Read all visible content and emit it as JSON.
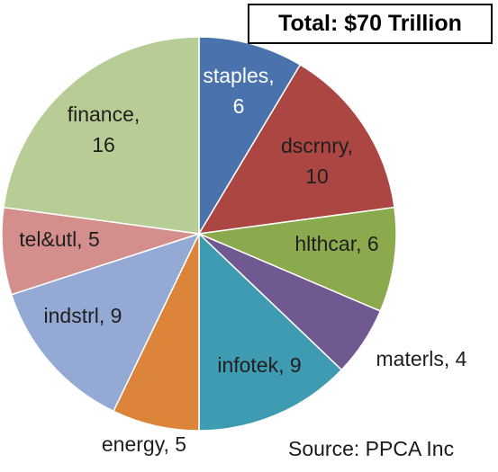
{
  "chart_data": {
    "type": "pie",
    "title": "Total: $70 Trillion",
    "source": "Source: PPCA Inc",
    "slices": [
      {
        "name": "staples",
        "value": 6,
        "label_lines": [
          "staples,",
          "6"
        ],
        "color": "#4a72ad",
        "label_color": "#ffffff"
      },
      {
        "name": "dscrnry",
        "value": 10,
        "label_lines": [
          "dscrnry,",
          "10"
        ],
        "color": "#ab4642",
        "label_color": "#1f1f1f"
      },
      {
        "name": "hlthcar",
        "value": 6,
        "label_lines": [
          "hlthcar, 6"
        ],
        "color": "#8aaa4d",
        "label_color": "#1f1f1f"
      },
      {
        "name": "materls",
        "value": 4,
        "label_lines": [
          "materls, 4"
        ],
        "color": "#705890",
        "label_color": "#1f1f1f"
      },
      {
        "name": "infotek",
        "value": 9,
        "label_lines": [
          "infotek, 9"
        ],
        "color": "#3f9bb2",
        "label_color": "#1f1f1f"
      },
      {
        "name": "energy",
        "value": 5,
        "label_lines": [
          "energy, 5"
        ],
        "color": "#dc8439",
        "label_color": "#1f1f1f"
      },
      {
        "name": "indstrl",
        "value": 9,
        "label_lines": [
          "indstrl, 9"
        ],
        "color": "#94a9d4",
        "label_color": "#1f1f1f"
      },
      {
        "name": "tel&utl",
        "value": 5,
        "label_lines": [
          "tel&utl, 5"
        ],
        "color": "#d48f8d",
        "label_color": "#1f1f1f"
      },
      {
        "name": "finance",
        "value": 16,
        "label_lines": [
          "finance,",
          "16"
        ],
        "color": "#b7cd95",
        "label_color": "#1f1f1f"
      }
    ]
  }
}
